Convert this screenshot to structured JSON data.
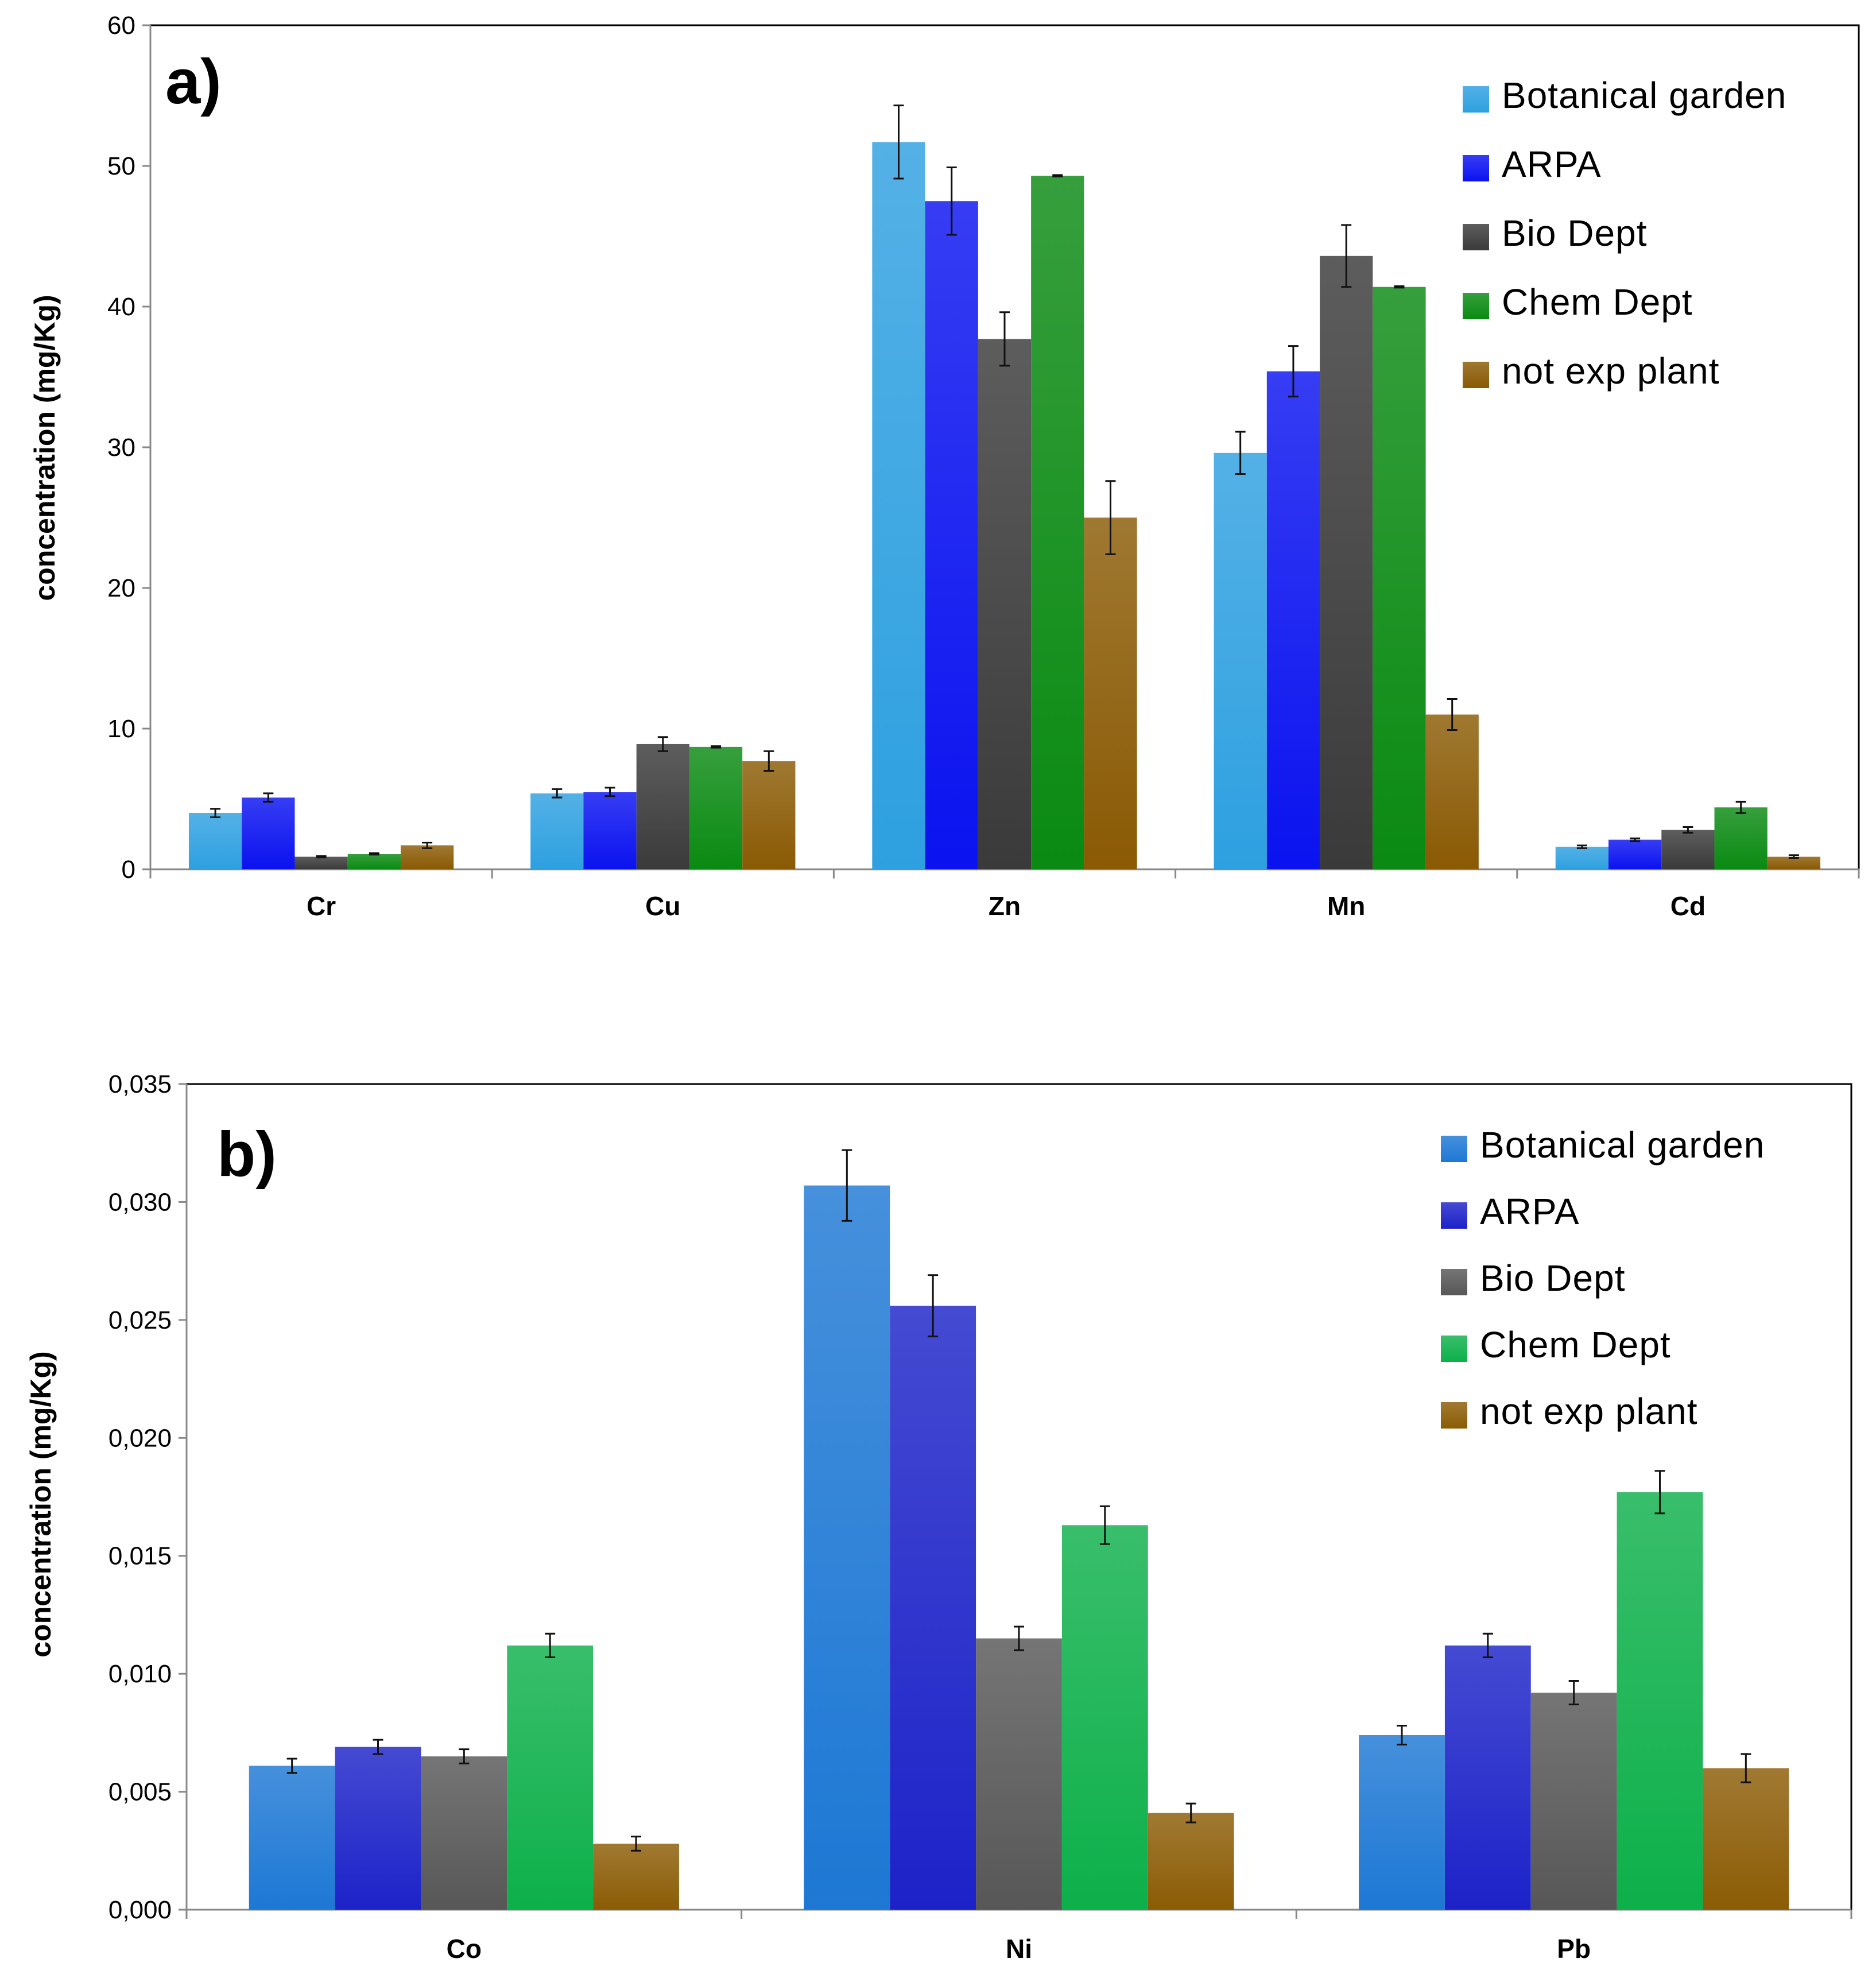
{
  "colors": {
    "Botanical garden": "#2ea0e0",
    "ARPA": "#0a12f0",
    "Bio Dept": "#3a3a3a",
    "Chem Dept": "#0a8a12",
    "not exp plant": "#8a5a04"
  },
  "colors_b": {
    "Botanical garden": "#1d78d4",
    "ARPA": "#1c22c8",
    "Bio Dept": "#575757",
    "Chem Dept": "#0db04a",
    "not exp plant": "#8b5c05"
  },
  "chart_data": [
    {
      "type": "bar",
      "panel_label": "a)",
      "ylabel": "concentration (mg/Kg)",
      "xlabel": "",
      "ylim": [
        0,
        60
      ],
      "yticks": [
        "0",
        "10",
        "20",
        "30",
        "40",
        "50",
        "60"
      ],
      "ytick_values": [
        0,
        10,
        20,
        30,
        40,
        50,
        60
      ],
      "categories": [
        "Cr",
        "Cu",
        "Zn",
        "Mn",
        "Cd"
      ],
      "legend_position": "top-right",
      "series": [
        {
          "name": "Botanical garden",
          "values": [
            4.0,
            5.4,
            51.7,
            29.6,
            1.6
          ],
          "errors": [
            0.3,
            0.3,
            2.6,
            1.5,
            0.1
          ]
        },
        {
          "name": "ARPA",
          "values": [
            5.1,
            5.5,
            47.5,
            35.4,
            2.1
          ],
          "errors": [
            0.3,
            0.3,
            2.4,
            1.8,
            0.1
          ]
        },
        {
          "name": "Bio Dept",
          "values": [
            0.9,
            8.9,
            37.7,
            43.6,
            2.8
          ],
          "errors": [
            0.05,
            0.5,
            1.9,
            2.2,
            0.2
          ]
        },
        {
          "name": "Chem Dept",
          "values": [
            1.1,
            8.7,
            49.3,
            41.4,
            4.4
          ],
          "errors": [
            0.05,
            0.05,
            0.05,
            0.05,
            0.4
          ]
        },
        {
          "name": "not exp plant",
          "values": [
            1.7,
            7.7,
            25.0,
            11.0,
            0.9
          ],
          "errors": [
            0.2,
            0.7,
            2.6,
            1.1,
            0.1
          ]
        }
      ]
    },
    {
      "type": "bar",
      "panel_label": "b)",
      "ylabel": "concentration (mg/Kg)",
      "xlabel": "",
      "ylim": [
        0,
        0.035
      ],
      "yticks": [
        "0,000",
        "0,005",
        "0,010",
        "0,015",
        "0,020",
        "0,025",
        "0,030",
        "0,035"
      ],
      "ytick_values": [
        0,
        0.005,
        0.01,
        0.015,
        0.02,
        0.025,
        0.03,
        0.035
      ],
      "categories": [
        "Co",
        "Ni",
        "Pb"
      ],
      "legend_position": "top-right",
      "series": [
        {
          "name": "Botanical garden",
          "values": [
            0.0061,
            0.0307,
            0.0074
          ],
          "errors": [
            0.0003,
            0.0015,
            0.0004
          ]
        },
        {
          "name": "ARPA",
          "values": [
            0.0069,
            0.0256,
            0.0112
          ],
          "errors": [
            0.0003,
            0.0013,
            0.0005
          ]
        },
        {
          "name": "Bio Dept",
          "values": [
            0.0065,
            0.0115,
            0.0092
          ],
          "errors": [
            0.0003,
            0.0005,
            0.0005
          ]
        },
        {
          "name": "Chem Dept",
          "values": [
            0.0112,
            0.0163,
            0.0177
          ],
          "errors": [
            0.0005,
            0.0008,
            0.0009
          ]
        },
        {
          "name": "not exp plant",
          "values": [
            0.0028,
            0.0041,
            0.006
          ],
          "errors": [
            0.0003,
            0.0004,
            0.0006
          ]
        }
      ]
    }
  ]
}
